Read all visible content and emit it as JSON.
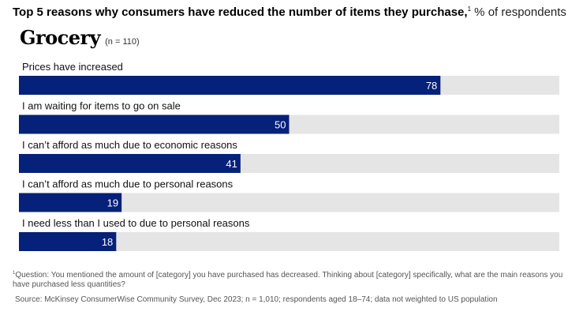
{
  "title": {
    "bold": "Top 5 reasons why consumers have reduced the number of items they purchase,",
    "footnote_mark": "1",
    "unit": " % of respondents"
  },
  "panel": {
    "category": "Grocery",
    "n_label": "(n = 110)"
  },
  "colors": {
    "bar": "#062179",
    "track": "#e5e5e5"
  },
  "chart_data": {
    "type": "bar",
    "orientation": "horizontal",
    "title": "Top 5 reasons why consumers have reduced the number of items they purchase, % of respondents",
    "subtitle": "Grocery (n = 110)",
    "categories": [
      "Prices have increased",
      "I am waiting for items to go on sale",
      "I can’t afford as much due to economic reasons",
      "I can’t afford as much due to personal reasons",
      "I need less than I used to due to personal reasons"
    ],
    "values": [
      78,
      50,
      41,
      19,
      18
    ],
    "xlim": [
      0,
      100
    ],
    "xlabel": "",
    "ylabel": "",
    "grid": false
  },
  "footnotes": {
    "note_mark": "1",
    "note": "Question: You mentioned the amount of [category] you have purchased has decreased. Thinking about [category] specifically, what are the main reasons you have purchased less quantities?",
    "source": "Source: McKinsey ConsumerWise Community Survey, Dec 2023; n = 1,010; respondents aged 18–74; data not weighted to US population"
  }
}
